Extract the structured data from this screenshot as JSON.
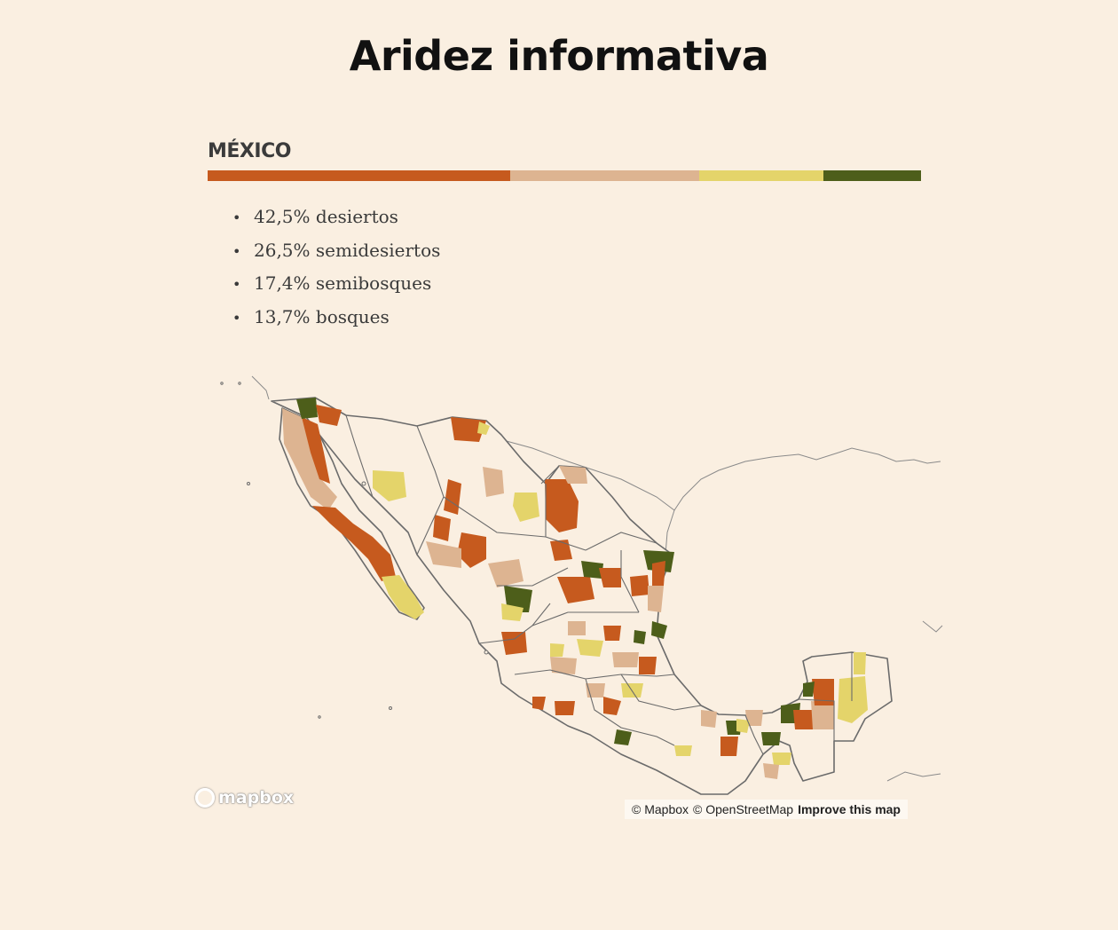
{
  "title": "Aridez informativa",
  "country": "MÉXICO",
  "colors": {
    "desiertos": "#c65a1e",
    "semidesiertos": "#ddb491",
    "semibosques": "#e4d46a",
    "bosques": "#4d5e1a",
    "land": "#faefe1",
    "border": "#6b6b6b"
  },
  "stats": [
    {
      "label": "42,5% desiertos",
      "share": 42.5
    },
    {
      "label": "26,5% semidesiertos",
      "share": 26.5
    },
    {
      "label": "17,4% semibosques",
      "share": 17.4
    },
    {
      "label": "13,7% bosques",
      "share": 13.7
    }
  ],
  "attribution": {
    "mapbox": "© Mapbox",
    "osm": "© OpenStreetMap",
    "improve": "Improve this map"
  },
  "logo_text": "mapbox"
}
